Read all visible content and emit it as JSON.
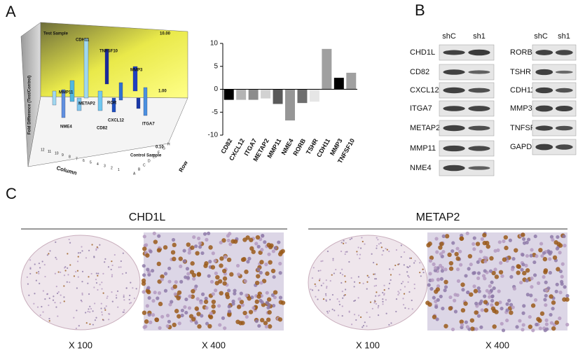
{
  "panels": {
    "a": "A",
    "b": "B",
    "c": "C"
  },
  "chart3d": {
    "z_label": "Fold Difference (Test/Control)",
    "z_ticks": [
      "10.00",
      "1.00",
      "0.10"
    ],
    "back_label": "Test Sample",
    "front_label": "Control Sample",
    "x_label": "Column",
    "y_label": "Row",
    "columns": [
      "12",
      "11",
      "10",
      "9",
      "8",
      "7",
      "6",
      "5",
      "4",
      "3",
      "2",
      "1"
    ],
    "rows": [
      "A",
      "B",
      "C",
      "D",
      "E",
      "F",
      "G",
      "H"
    ],
    "genes": [
      "CDH11",
      "TNFSF10",
      "MMP3",
      "MMP11",
      "METAP2",
      "ROR",
      "CXCL12",
      "CD82",
      "NME4",
      "ITGA7"
    ]
  },
  "chart_data": {
    "type": "bar",
    "categories": [
      "CD82",
      "CXCL12",
      "ITGA7",
      "METAP2",
      "MMP11",
      "NME4",
      "RORB",
      "TSHR",
      "CDH11",
      "MMP3",
      "TNFSF10"
    ],
    "values": [
      -2.3,
      -2.3,
      -2.3,
      -2.0,
      -3.2,
      -6.8,
      -3.0,
      -2.7,
      8.8,
      2.5,
      3.6
    ],
    "colors": [
      "#000000",
      "#b4b4b4",
      "#8c8c8c",
      "#d2d2d2",
      "#5a5a5a",
      "#969696",
      "#6e6e6e",
      "#e6e6e6",
      "#a0a0a0",
      "#000000",
      "#a0a0a0"
    ],
    "ylim": [
      -10,
      10
    ],
    "yticks": [
      -10,
      -5,
      0,
      5,
      10
    ]
  },
  "blots": {
    "left": {
      "headers": [
        "shC",
        "sh1"
      ],
      "genes": [
        "CHD1L",
        "CD82",
        "CXCL12",
        "ITGA7",
        "METAP2",
        "MMP11",
        "NME4"
      ]
    },
    "right": {
      "headers": [
        "shC",
        "sh1"
      ],
      "genes": [
        "RORB",
        "TSHR",
        "CDH11",
        "MMP3",
        "TNFSF10",
        "GAPDH"
      ]
    }
  },
  "ihc": {
    "panels": [
      {
        "title": "CHD1L",
        "captions": [
          "X 100",
          "X 400"
        ]
      },
      {
        "title": "METAP2",
        "captions": [
          "X 100",
          "X 400"
        ]
      }
    ]
  }
}
